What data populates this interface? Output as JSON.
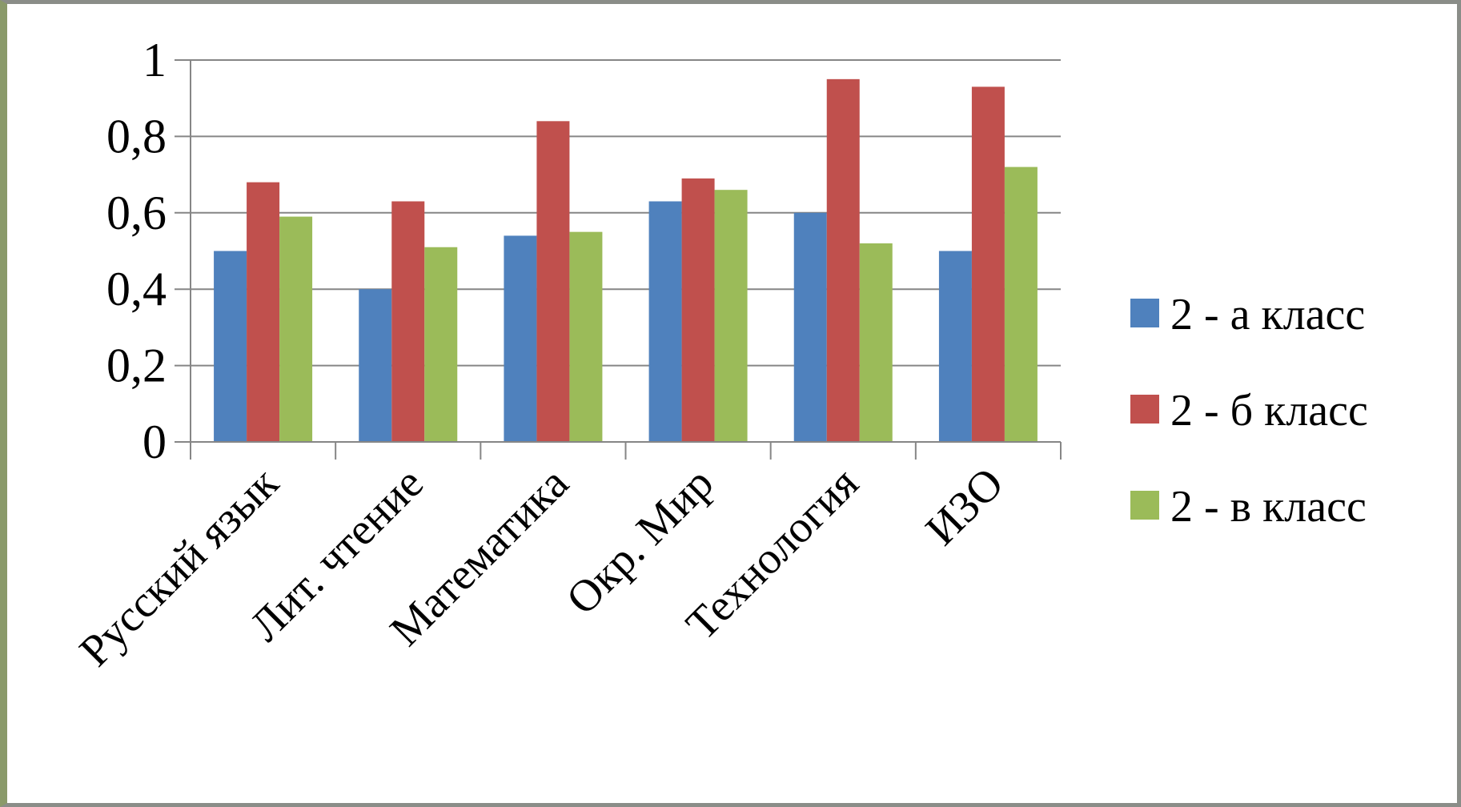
{
  "chart_data": {
    "type": "bar",
    "title": "",
    "xlabel": "",
    "ylabel": "",
    "categories": [
      "Русский язык",
      "Лит. чтение",
      "Математика",
      "Окр. Мир",
      "Технология",
      "ИЗО"
    ],
    "series": [
      {
        "name": "2 - а класс",
        "color": "#4f81bd",
        "values": [
          0.5,
          0.4,
          0.54,
          0.63,
          0.6,
          0.5
        ]
      },
      {
        "name": "2 - б класс",
        "color": "#c0504d",
        "values": [
          0.68,
          0.63,
          0.84,
          0.69,
          0.95,
          0.93
        ]
      },
      {
        "name": "2 - в класс",
        "color": "#9bbb59",
        "values": [
          0.59,
          0.51,
          0.55,
          0.66,
          0.52,
          0.72
        ]
      }
    ],
    "yticks": [
      "0",
      "0,2",
      "0,4",
      "0,6",
      "0,8",
      "1"
    ],
    "ylim": [
      0,
      1
    ],
    "grid": true,
    "legend_position": "right"
  }
}
